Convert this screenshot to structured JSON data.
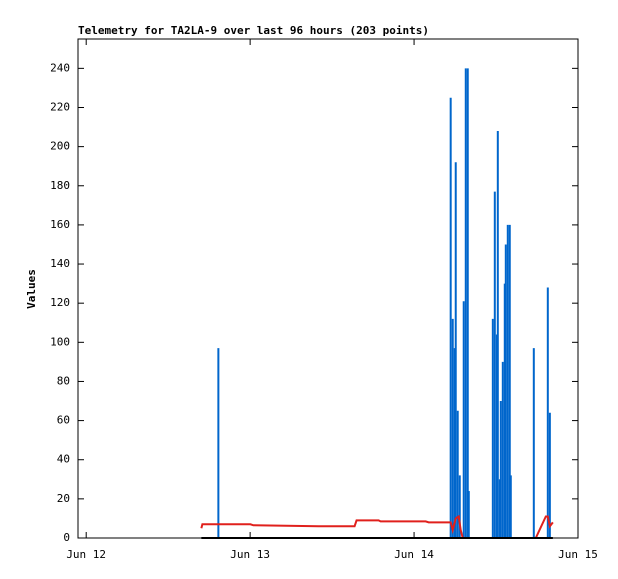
{
  "chart_data": {
    "type": "line",
    "title": "Telemetry for TA2LA-9 over last 96 hours (203 points)",
    "y_label": "Values",
    "xlim": [
      -1.2,
      72
    ],
    "ylim": [
      0,
      255
    ],
    "xticks": [
      {
        "value": 0,
        "label": "Jun 12"
      },
      {
        "value": 24,
        "label": "Jun 13"
      },
      {
        "value": 48,
        "label": "Jun 14"
      },
      {
        "value": 72,
        "label": "Jun 15"
      }
    ],
    "yticks": [
      0,
      20,
      40,
      60,
      80,
      100,
      120,
      140,
      160,
      180,
      200,
      220,
      240
    ],
    "series": [
      {
        "color": "#0066cc",
        "style": "impulses",
        "x": [
          19.35,
          53.36,
          53.66,
          53.95,
          54.1,
          54.39,
          54.69,
          55.27,
          55.57,
          55.86,
          56.01,
          59.53,
          59.82,
          60.12,
          60.26,
          60.55,
          60.7,
          60.99,
          61.28,
          61.43,
          61.72,
          62.01,
          62.16,
          65.53,
          67.58,
          67.88
        ],
        "values": [
          97,
          225,
          112,
          97,
          192,
          65,
          32,
          121,
          240,
          240,
          24,
          112,
          177,
          104,
          208,
          30,
          70,
          90,
          130,
          150,
          160,
          160,
          32,
          97,
          128,
          64
        ]
      },
      {
        "color": "#e0201c",
        "style": "lines",
        "x": [
          16.86,
          17.01,
          24.04,
          24.48,
          34.01,
          39.29,
          39.58,
          42.81,
          43.1,
          49.7,
          50.14,
          53.36,
          53.66,
          54.1,
          54.54,
          54.83,
          55.13,
          65.82,
          67.29,
          67.58,
          67.88,
          68.32
        ],
        "values": [
          5,
          7,
          7,
          6.5,
          6,
          6,
          9,
          9,
          8.5,
          8.5,
          8,
          8,
          4,
          10,
          11,
          4,
          0,
          0,
          11,
          11,
          6,
          8
        ]
      },
      {
        "color": "#000000",
        "style": "lines",
        "x": [
          16.86,
          68.32
        ],
        "values": [
          0,
          0
        ]
      }
    ]
  }
}
